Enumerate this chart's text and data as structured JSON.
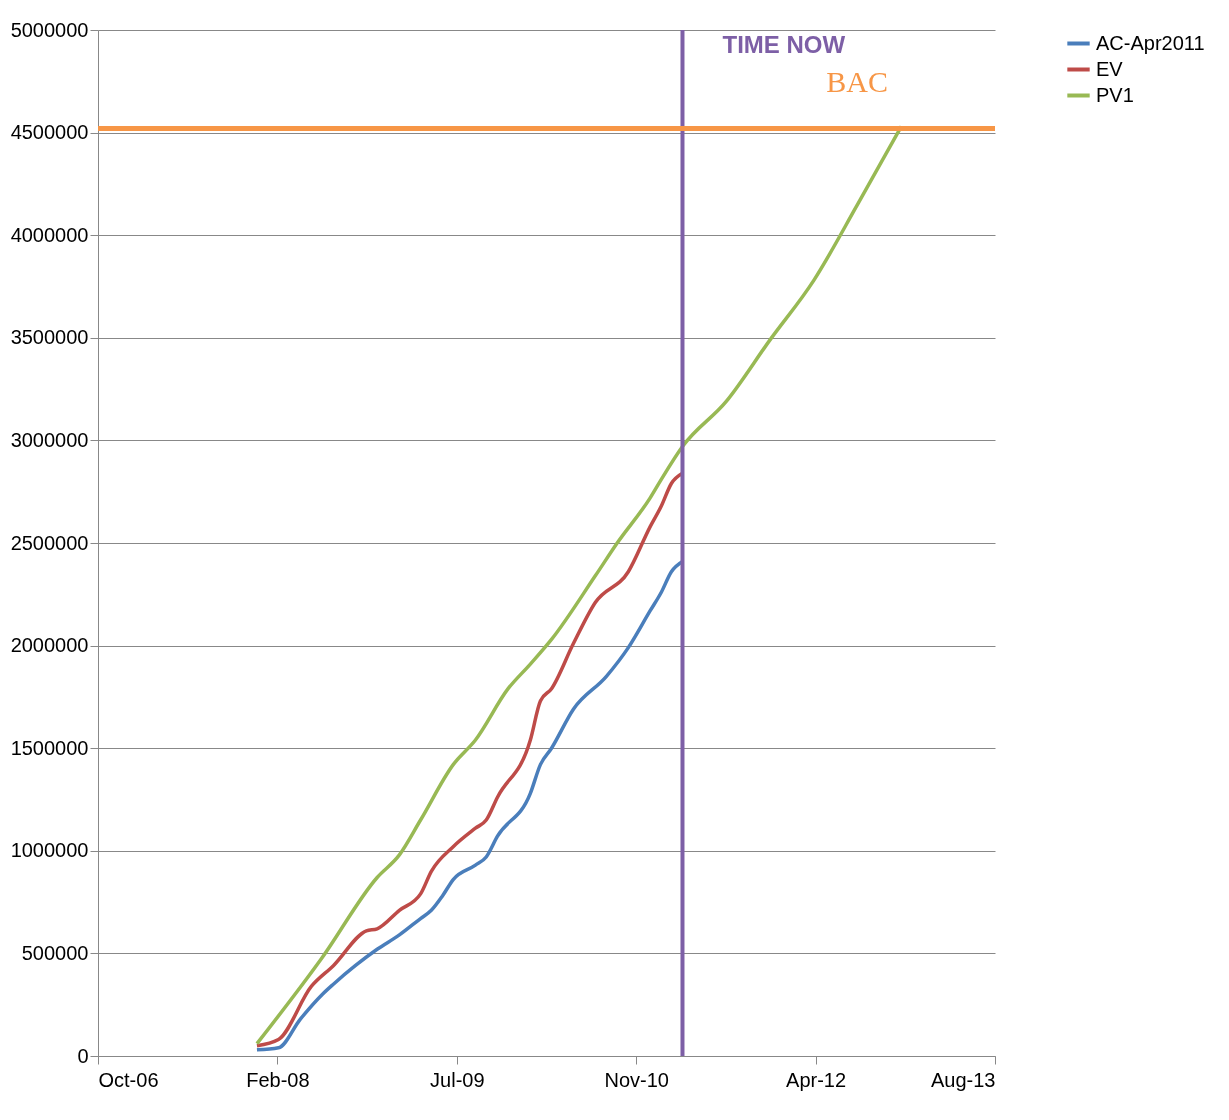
{
  "chart_data": {
    "type": "line",
    "xlim": [
      "2006-10-15",
      "2013-08-19"
    ],
    "xticks": [
      {
        "value": "2006-10-15",
        "label": "Oct-06"
      },
      {
        "value": "2008-02-27",
        "label": "Feb-08"
      },
      {
        "value": "2009-07-11",
        "label": "Jul-09"
      },
      {
        "value": "2010-11-23",
        "label": "Nov-10"
      },
      {
        "value": "2012-04-06",
        "label": "Apr-12"
      },
      {
        "value": "2013-08-19",
        "label": "Aug-13"
      }
    ],
    "ylim": [
      0,
      5000000
    ],
    "yticks": [
      0,
      500000,
      1000000,
      1500000,
      2000000,
      2500000,
      3000000,
      3500000,
      4000000,
      4500000,
      5000000
    ],
    "grid": "y",
    "legend": "right",
    "marker": "none",
    "line_style": "solid",
    "series": [
      {
        "name": "AC-Apr2011",
        "color": "#4a7ebb",
        "x": [
          "2008-01",
          "2008-03",
          "2008-05",
          "2008-07",
          "2008-08",
          "2008-10",
          "2008-12",
          "2009-02",
          "2009-04",
          "2009-05",
          "2009-06",
          "2009-07",
          "2009-09",
          "2009-10",
          "2009-11",
          "2010-02",
          "2010-03",
          "2010-04",
          "2010-06",
          "2010-09",
          "2010-11",
          "2011-01",
          "2011-02",
          "2011-03",
          "2011-04"
        ],
        "values": [
          30000,
          40000,
          180000,
          300000,
          350000,
          440000,
          520000,
          590000,
          670000,
          710000,
          780000,
          860000,
          930000,
          970000,
          1070000,
          1280000,
          1420000,
          1500000,
          1690000,
          1850000,
          1990000,
          2170000,
          2260000,
          2360000,
          2410000
        ]
      },
      {
        "name": "EV",
        "color": "#be4b48",
        "x": [
          "2008-01",
          "2008-03",
          "2008-06",
          "2008-08",
          "2008-11",
          "2008-12",
          "2009-02",
          "2009-04",
          "2009-05",
          "2009-07",
          "2009-09",
          "2009-10",
          "2009-11",
          "2010-02",
          "2010-03",
          "2010-04",
          "2010-06",
          "2010-08",
          "2010-11",
          "2011-01",
          "2011-02",
          "2011-03",
          "2011-04"
        ],
        "values": [
          50000,
          80000,
          340000,
          440000,
          610000,
          620000,
          710000,
          790000,
          900000,
          1020000,
          1110000,
          1150000,
          1260000,
          1540000,
          1730000,
          1790000,
          2010000,
          2210000,
          2360000,
          2580000,
          2680000,
          2790000,
          2840000
        ]
      },
      {
        "name": "PV1",
        "color": "#98b954",
        "x": [
          "2008-01",
          "2008-07",
          "2008-12",
          "2009-02",
          "2009-04",
          "2009-07",
          "2009-09",
          "2009-12",
          "2010-02",
          "2010-04",
          "2010-08",
          "2010-10",
          "2011-01",
          "2011-02",
          "2011-04",
          "2011-08",
          "2011-12",
          "2012-04",
          "2012-08",
          "2012-12"
        ],
        "values": [
          60000,
          480000,
          870000,
          980000,
          1150000,
          1420000,
          1540000,
          1790000,
          1910000,
          2030000,
          2340000,
          2500000,
          2720000,
          2810000,
          2970000,
          3190000,
          3490000,
          3780000,
          4150000,
          4530000
        ]
      }
    ],
    "ref_lines": [
      {
        "axis": "x",
        "value": "2011-04",
        "label": "TIME NOW",
        "color": "#7d5fa6"
      },
      {
        "axis": "y",
        "value": 4520000,
        "label": "BAC",
        "color": "#f79646"
      }
    ]
  }
}
